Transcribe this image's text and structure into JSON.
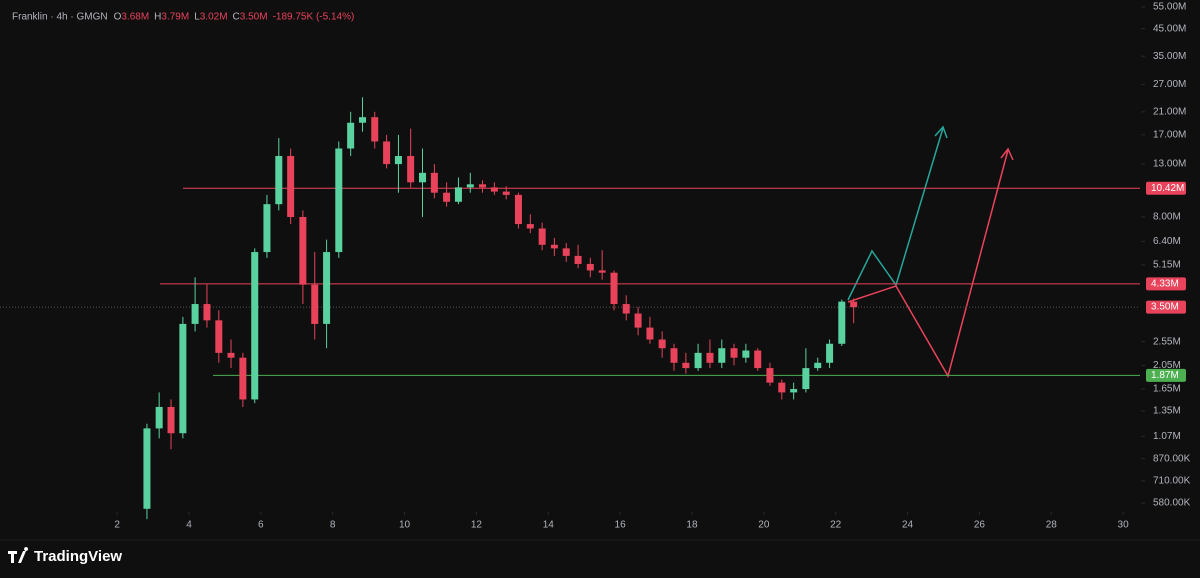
{
  "header": {
    "symbol": "Franklin · 4h · GMGN",
    "fields": [
      {
        "key": "O",
        "value": "3.68M"
      },
      {
        "key": "H",
        "value": "3.79M"
      },
      {
        "key": "L",
        "value": "3.02M"
      },
      {
        "key": "C",
        "value": "3.50M"
      }
    ],
    "change": "-189.75K (-5.14%)"
  },
  "brand": "TradingView",
  "chart_data": {
    "type": "candlestick",
    "log_scale": true,
    "up_color": "#5ad2a0",
    "down_color": "#e8435a",
    "xlim": [
      -1.26,
      30.47
    ],
    "xticks": [
      2,
      4,
      6,
      8,
      10,
      12,
      14,
      16,
      18,
      20,
      22,
      24,
      26,
      28,
      30
    ],
    "ylim": [
      534000,
      58600000
    ],
    "yticks": [
      {
        "value": 580000,
        "label": "580.00K"
      },
      {
        "value": 710000,
        "label": "710.00K"
      },
      {
        "value": 870000,
        "label": "870.00K"
      },
      {
        "value": 1070000,
        "label": "1.07M"
      },
      {
        "value": 1350000,
        "label": "1.35M"
      },
      {
        "value": 1650000,
        "label": "1.65M"
      },
      {
        "value": 2050000,
        "label": "2.05M"
      },
      {
        "value": 2550000,
        "label": "2.55M"
      },
      {
        "value": 5150000,
        "label": "5.15M"
      },
      {
        "value": 6400000,
        "label": "6.40M"
      },
      {
        "value": 8000000,
        "label": "8.00M"
      },
      {
        "value": 13000000,
        "label": "13.00M"
      },
      {
        "value": 17000000,
        "label": "17.00M"
      },
      {
        "value": 21000000,
        "label": "21.00M"
      },
      {
        "value": 27000000,
        "label": "27.00M"
      },
      {
        "value": 35000000,
        "label": "35.00M"
      },
      {
        "value": 45000000,
        "label": "45.00M"
      },
      {
        "value": 55000000,
        "label": "55.00M"
      }
    ],
    "levels": [
      {
        "value": 10420000,
        "label": "10.42M",
        "color": "#e8435a"
      },
      {
        "value": 4330000,
        "label": "4.33M",
        "color": "#e8435a"
      },
      {
        "value": 3500000,
        "label": "3.50M",
        "color": "#e8435a"
      },
      {
        "value": 1870000,
        "label": "1.87M",
        "color": "#4caf50"
      }
    ],
    "candles": {
      "x": [
        2.83,
        3.17,
        3.5,
        3.83,
        4.17,
        4.5,
        4.83,
        5.17,
        5.5,
        5.83,
        6.17,
        6.5,
        6.83,
        7.17,
        7.5,
        7.83,
        8.17,
        8.5,
        8.83,
        9.17,
        9.5,
        9.83,
        10.17,
        10.5,
        10.83,
        11.17,
        11.5,
        11.83,
        12.17,
        12.5,
        12.83,
        13.17,
        13.5,
        13.83,
        14.17,
        14.5,
        14.83,
        15.17,
        15.5,
        15.83,
        16.17,
        16.5,
        16.83,
        17.17,
        17.5,
        17.83,
        18.17,
        18.5,
        18.83,
        19.17,
        19.5,
        19.83,
        20.17,
        20.5,
        20.83,
        21.17,
        21.5,
        21.83,
        22.17,
        22.5
      ],
      "open": [
        550000,
        1150000,
        1400000,
        1100000,
        3000000,
        3600000,
        3100000,
        2300000,
        2200000,
        1500000,
        5800000,
        9000000,
        14000000,
        8000000,
        4300000,
        3000000,
        5800000,
        15000000,
        19000000,
        20000000,
        16000000,
        13000000,
        14000000,
        11000000,
        12000000,
        10000000,
        9200000,
        10500000,
        10800000,
        10500000,
        10100000,
        9800000,
        7500000,
        7200000,
        6200000,
        6000000,
        5600000,
        5200000,
        4900000,
        4800000,
        3600000,
        3300000,
        2900000,
        2600000,
        2400000,
        2100000,
        2000000,
        2300000,
        2100000,
        2400000,
        2200000,
        2350000,
        2000000,
        1750000,
        1600000,
        1650000,
        2000000,
        2100000,
        2500000,
        3680000
      ],
      "high": [
        1200000,
        1600000,
        1500000,
        3200000,
        4600000,
        4300000,
        3400000,
        2600000,
        2300000,
        6000000,
        9800000,
        16500000,
        15000000,
        8500000,
        5800000,
        6500000,
        16000000,
        21000000,
        24000000,
        21000000,
        17000000,
        17000000,
        18000000,
        15000000,
        13000000,
        11000000,
        11500000,
        12000000,
        11200000,
        11000000,
        10600000,
        10000000,
        8200000,
        7600000,
        6600000,
        6300000,
        6200000,
        5500000,
        5900000,
        4900000,
        3900000,
        3500000,
        3200000,
        2800000,
        2500000,
        2300000,
        2500000,
        2600000,
        2600000,
        2500000,
        2500000,
        2400000,
        2100000,
        1800000,
        1750000,
        2400000,
        2200000,
        2600000,
        3750000,
        3790000
      ],
      "low": [
        500000,
        1050000,
        950000,
        1050000,
        2800000,
        2900000,
        2100000,
        2000000,
        1400000,
        1450000,
        5500000,
        8500000,
        7500000,
        3600000,
        2600000,
        2400000,
        5500000,
        14000000,
        17500000,
        15000000,
        12500000,
        10000000,
        10500000,
        8000000,
        9500000,
        8800000,
        9000000,
        10000000,
        10000000,
        9800000,
        9400000,
        7200000,
        6900000,
        5900000,
        5600000,
        5300000,
        5000000,
        4600000,
        4500000,
        3400000,
        3100000,
        2700000,
        2500000,
        2200000,
        1950000,
        1900000,
        1950000,
        2000000,
        2000000,
        2050000,
        2100000,
        1950000,
        1700000,
        1500000,
        1500000,
        1600000,
        1950000,
        2000000,
        2450000,
        3020000
      ],
      "close": [
        1150000,
        1400000,
        1100000,
        3000000,
        3600000,
        3100000,
        2300000,
        2200000,
        1500000,
        5800000,
        9000000,
        14000000,
        8000000,
        4300000,
        3000000,
        5800000,
        15000000,
        19000000,
        20000000,
        16000000,
        13000000,
        14000000,
        11000000,
        12000000,
        10000000,
        9200000,
        10500000,
        10800000,
        10500000,
        10100000,
        9800000,
        7500000,
        7200000,
        6200000,
        6000000,
        5600000,
        5200000,
        4900000,
        4800000,
        3600000,
        3300000,
        2900000,
        2600000,
        2400000,
        2100000,
        2000000,
        2300000,
        2100000,
        2400000,
        2200000,
        2350000,
        2000000,
        1750000,
        1600000,
        1650000,
        2000000,
        2100000,
        2500000,
        3680000,
        3500000
      ]
    }
  }
}
